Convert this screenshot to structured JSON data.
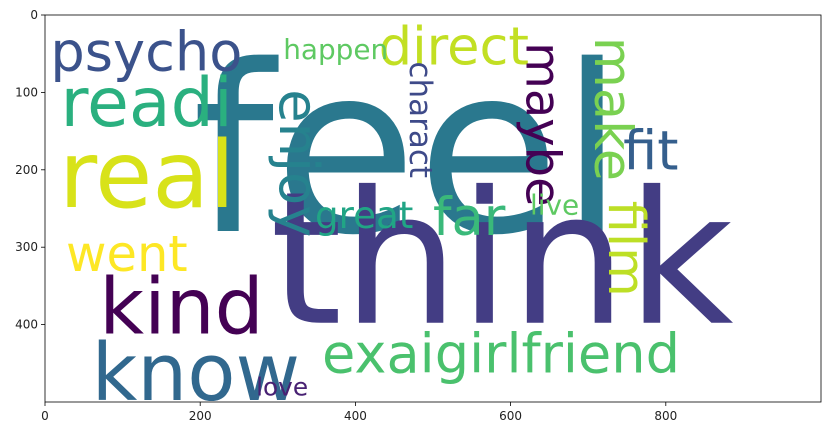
{
  "chart_data": {
    "type": "wordcloud",
    "title": "",
    "xlabel": "",
    "ylabel": "",
    "xlim": [
      0,
      1000
    ],
    "ylim": [
      500,
      0
    ],
    "x_ticks": [
      0,
      200,
      400,
      600,
      800
    ],
    "y_ticks": [
      0,
      100,
      200,
      300,
      400
    ],
    "grid": false,
    "words": [
      {
        "text": "feel",
        "x": 190,
        "y": 0,
        "size": 300,
        "rotate": false,
        "color": "#2a788e"
      },
      {
        "text": "think",
        "x": 290,
        "y": 178,
        "size": 238,
        "rotate": false,
        "color": "#433d84"
      },
      {
        "text": "real",
        "x": 18,
        "y": 137,
        "size": 120,
        "rotate": false,
        "color": "#d8e219"
      },
      {
        "text": "readi",
        "x": 20,
        "y": 63,
        "size": 88,
        "rotate": false,
        "color": "#2ab07f"
      },
      {
        "text": "psycho",
        "x": 7,
        "y": 7,
        "size": 70,
        "rotate": false,
        "color": "#3b528b"
      },
      {
        "text": "kind",
        "x": 70,
        "y": 320,
        "size": 100,
        "rotate": false,
        "color": "#440154"
      },
      {
        "text": "know",
        "x": 60,
        "y": 403,
        "size": 102,
        "rotate": false,
        "color": "#31688e"
      },
      {
        "text": "went",
        "x": 27,
        "y": 271,
        "size": 64,
        "rotate": false,
        "color": "#fde725"
      },
      {
        "text": "exaigirlfriend",
        "x": 357,
        "y": 397,
        "size": 70,
        "rotate": false,
        "color": "#4ac16d"
      },
      {
        "text": "love",
        "x": 272,
        "y": 462,
        "size": 32,
        "rotate": false,
        "color": "#482173"
      },
      {
        "text": "direct",
        "x": 430,
        "y": 2,
        "size": 68,
        "rotate": false,
        "color": "#c2df23"
      },
      {
        "text": "happen",
        "x": 307,
        "y": 23,
        "size": 36,
        "rotate": false,
        "color": "#5ec962"
      },
      {
        "text": "enjoy",
        "x": 286,
        "y": 96,
        "size": 70,
        "rotate": true,
        "color": "#26828e"
      },
      {
        "text": "charact",
        "x": 460,
        "y": 60,
        "size": 40,
        "rotate": true,
        "color": "#3e4a89"
      },
      {
        "text": "maybe",
        "x": 605,
        "y": 35,
        "size": 62,
        "rotate": true,
        "color": "#440154"
      },
      {
        "text": "make",
        "x": 692,
        "y": 28,
        "size": 68,
        "rotate": true,
        "color": "#7ad151"
      },
      {
        "text": "fit",
        "x": 745,
        "y": 135,
        "size": 70,
        "rotate": false,
        "color": "#355f8d"
      },
      {
        "text": "far",
        "x": 500,
        "y": 222,
        "size": 68,
        "rotate": false,
        "color": "#3ab97a"
      },
      {
        "text": "great",
        "x": 348,
        "y": 230,
        "size": 48,
        "rotate": false,
        "color": "#21a585"
      },
      {
        "text": "live",
        "x": 625,
        "y": 224,
        "size": 36,
        "rotate": false,
        "color": "#5ec962"
      },
      {
        "text": "film",
        "x": 710,
        "y": 240,
        "size": 66,
        "rotate": true,
        "color": "#bddf26"
      }
    ]
  }
}
